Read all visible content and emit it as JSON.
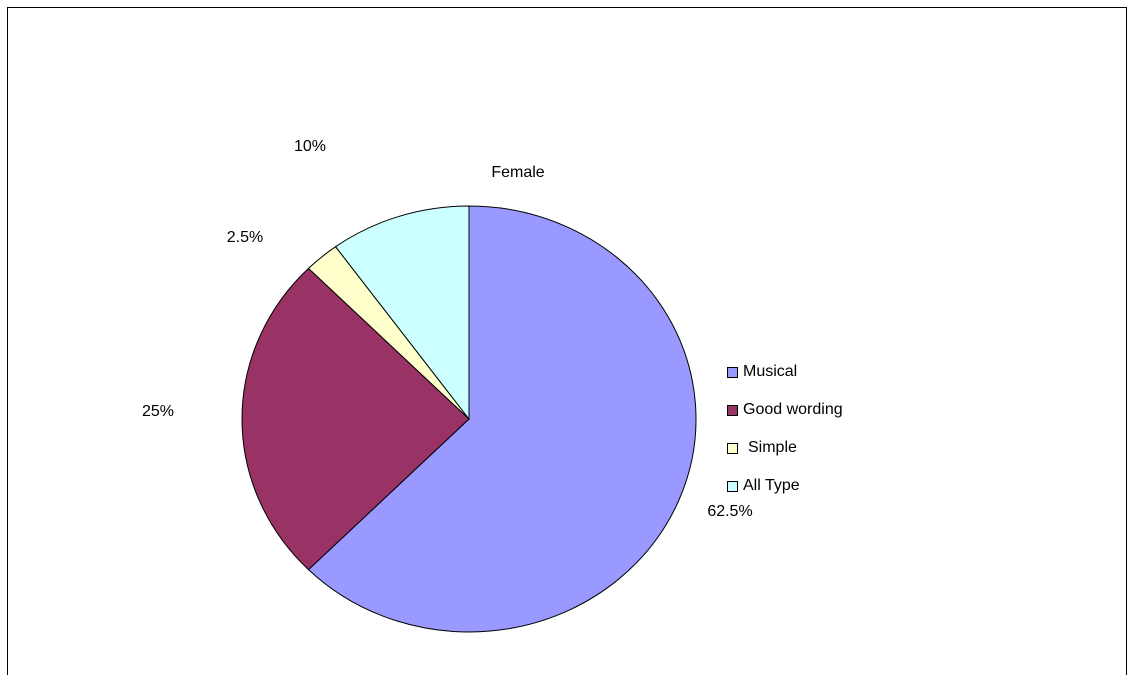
{
  "chart_data": {
    "type": "pie",
    "title": "Female",
    "start_angle_deg": 0,
    "direction": "clockwise",
    "slices": [
      {
        "name": "Musical",
        "value": 62.5,
        "label": "62.5%",
        "color": "#9999ff"
      },
      {
        "name": "Good wording",
        "value": 25,
        "label": "25%",
        "color": "#993366"
      },
      {
        "name": "Simple",
        "value": 2.5,
        "label": "2.5%",
        "color": "#ffffcc"
      },
      {
        "name": "All Type",
        "value": 10,
        "label": "10%",
        "color": "#ccffff"
      }
    ],
    "legend_position": "right"
  }
}
